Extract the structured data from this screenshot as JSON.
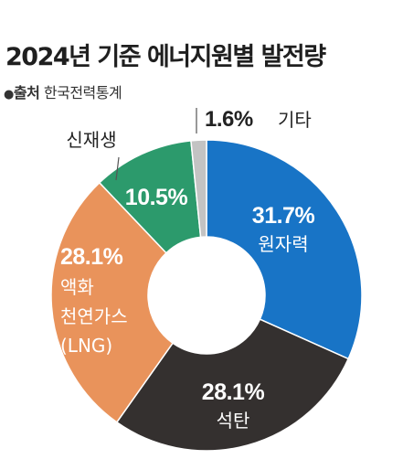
{
  "title": "2024년 기준 에너지원별 발전량",
  "source": {
    "bullet": "●",
    "label": "출처",
    "text": "한국전력통계"
  },
  "chart_data": {
    "type": "pie",
    "donut": true,
    "categories": [
      "원자력",
      "석탄",
      "액화 천연가스 (LNG)",
      "신재생",
      "기타"
    ],
    "values": [
      31.7,
      28.1,
      28.1,
      10.5,
      1.6
    ],
    "value_labels": [
      "31.7%",
      "28.1%",
      "28.1%",
      "10.5%",
      "1.6%"
    ],
    "category_labels": [
      [
        "원자력"
      ],
      [
        "석탄"
      ],
      [
        "액화",
        "천연가스",
        "(LNG)"
      ],
      [
        "신재생"
      ],
      [
        "기타"
      ]
    ],
    "colors": [
      "#1874c6",
      "#34302f",
      "#e9935b",
      "#2c9a6c",
      "#c3c3c3"
    ],
    "start": "12 o'clock",
    "direction": "clockwise",
    "legend": "none"
  }
}
